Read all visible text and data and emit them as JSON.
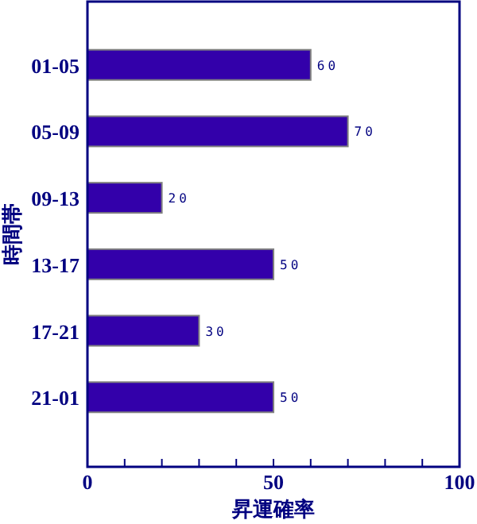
{
  "chart_data": {
    "type": "bar",
    "orientation": "horizontal",
    "xlabel": "昇運確率",
    "ylabel": "時間帯",
    "categories": [
      "01-05",
      "05-09",
      "09-13",
      "13-17",
      "17-21",
      "21-01"
    ],
    "values": [
      60,
      70,
      20,
      50,
      30,
      50
    ],
    "color": "#3300aa",
    "data_labels": true,
    "xlim": [
      0,
      100
    ],
    "xticks": [
      0,
      {
        "value": 10,
        "label": null
      },
      {
        "value": 20,
        "label": null
      },
      {
        "value": 30,
        "label": null
      },
      {
        "value": 40,
        "label": null
      },
      50,
      {
        "value": 60,
        "label": null
      },
      {
        "value": 70,
        "label": null
      },
      {
        "value": 80,
        "label": null
      },
      {
        "value": 90,
        "label": null
      },
      100
    ],
    "grid": false
  }
}
